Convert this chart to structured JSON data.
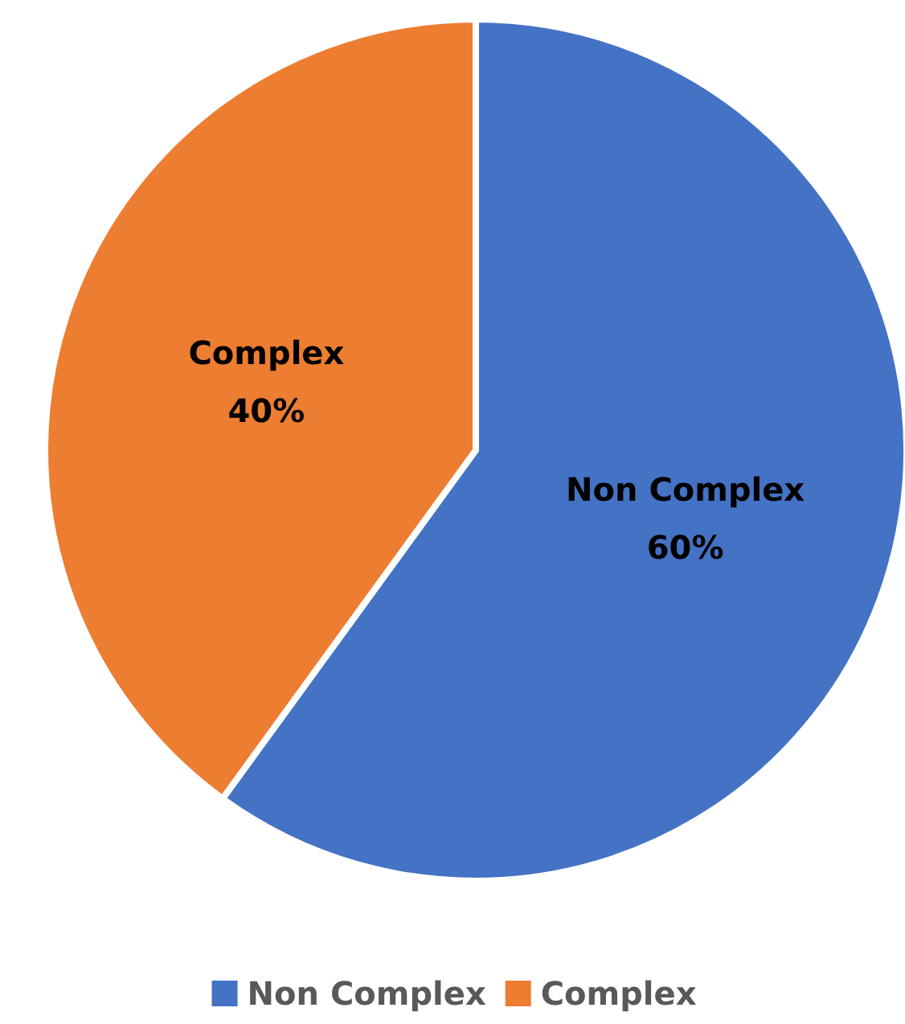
{
  "chart_data": {
    "type": "pie",
    "categories": [
      "Non Complex",
      "Complex"
    ],
    "values": [
      60,
      40
    ],
    "colors": [
      "#4472c4",
      "#ed7d31"
    ],
    "value_labels": [
      "60%",
      "40%"
    ],
    "legend": "bottom"
  }
}
